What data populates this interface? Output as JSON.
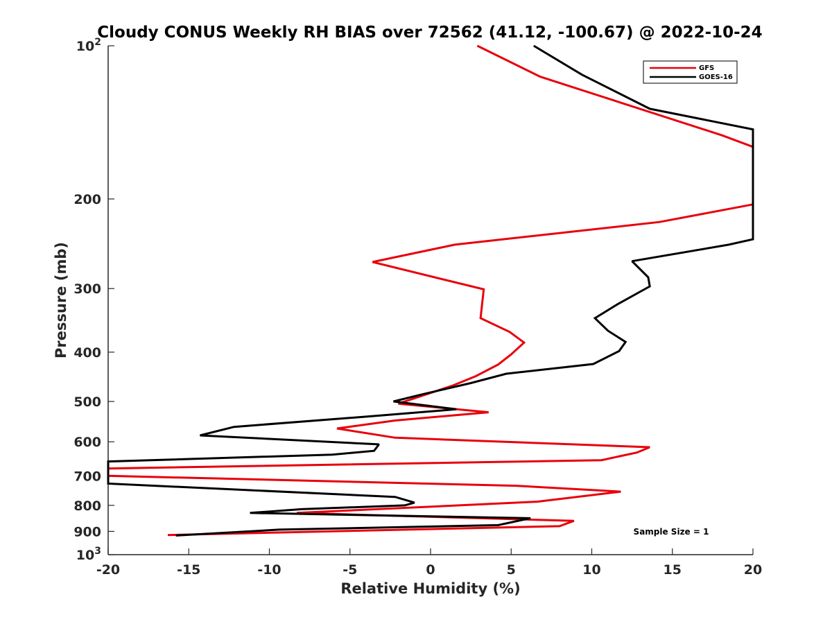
{
  "chart_data": {
    "type": "line",
    "title": "Cloudy CONUS Weekly RH BIAS over 72562 (41.12, -100.67) @ 2022-10-24",
    "xlabel": "Relative Humidity (%)",
    "ylabel": "Pressure (mb)",
    "xlim": [
      -20,
      20
    ],
    "ylim": [
      100,
      1000
    ],
    "y_scale": "log",
    "y_reversed": true,
    "x_ticks": [
      "-20",
      "-15",
      "-10",
      "-5",
      "0",
      "5",
      "10",
      "15",
      "20"
    ],
    "y_ticks": [
      {
        "value": 100,
        "base": "10",
        "exp": "2"
      },
      {
        "value": 200,
        "label": "200"
      },
      {
        "value": 300,
        "label": "300"
      },
      {
        "value": 400,
        "label": "400"
      },
      {
        "value": 500,
        "label": "500"
      },
      {
        "value": 600,
        "label": "600"
      },
      {
        "value": 700,
        "label": "700"
      },
      {
        "value": 800,
        "label": "800"
      },
      {
        "value": 900,
        "label": "900"
      },
      {
        "value": 1000,
        "base": "10",
        "exp": "3"
      }
    ],
    "grid": false,
    "legend_position": "top-right",
    "annotation": "Sample Size = 1",
    "series": [
      {
        "name": "GFS",
        "color": "#e8000b",
        "points": [
          [
            2.9,
            100
          ],
          [
            6.8,
            115
          ],
          [
            18.1,
            150
          ],
          [
            20.0,
            158
          ],
          [
            20.0,
            205
          ],
          [
            14.2,
            222
          ],
          [
            1.5,
            246
          ],
          [
            -3.6,
            266
          ],
          [
            3.3,
            301
          ],
          [
            3.1,
            343
          ],
          [
            4.9,
            365
          ],
          [
            5.8,
            383
          ],
          [
            5.0,
            404
          ],
          [
            4.2,
            423
          ],
          [
            2.8,
            446
          ],
          [
            1.4,
            465
          ],
          [
            -0.5,
            487
          ],
          [
            -2.0,
            505
          ],
          [
            3.6,
            525
          ],
          [
            -2.2,
            545
          ],
          [
            -5.8,
            565
          ],
          [
            -2.2,
            589
          ],
          [
            13.6,
            615
          ],
          [
            12.8,
            630
          ],
          [
            10.6,
            652
          ],
          [
            -20.0,
            677
          ],
          [
            -20.0,
            700
          ],
          [
            5.3,
            732
          ],
          [
            11.8,
            752
          ],
          [
            6.6,
            787
          ],
          [
            -8.3,
            828
          ],
          [
            8.9,
            858
          ],
          [
            8.0,
            879
          ],
          [
            -16.3,
            915
          ]
        ]
      },
      {
        "name": "GOES-16",
        "color": "#000000",
        "points": [
          [
            6.4,
            100
          ],
          [
            9.4,
            114
          ],
          [
            13.6,
            133
          ],
          [
            20.0,
            146
          ],
          [
            20.0,
            240
          ],
          [
            18.5,
            246
          ],
          [
            12.5,
            265
          ],
          [
            13.5,
            285
          ],
          [
            13.6,
            297
          ],
          [
            11.6,
            322
          ],
          [
            10.2,
            343
          ],
          [
            11.0,
            363
          ],
          [
            12.1,
            382
          ],
          [
            11.7,
            398
          ],
          [
            10.1,
            422
          ],
          [
            4.7,
            441
          ],
          [
            2.5,
            460
          ],
          [
            -0.5,
            484
          ],
          [
            -2.3,
            500
          ],
          [
            1.6,
            518
          ],
          [
            -3.5,
            534
          ],
          [
            -12.2,
            561
          ],
          [
            -14.3,
            583
          ],
          [
            -3.2,
            607
          ],
          [
            -3.5,
            625
          ],
          [
            -6.1,
            636
          ],
          [
            -20.0,
            656
          ],
          [
            -20.0,
            725
          ],
          [
            -2.2,
            770
          ],
          [
            -1.0,
            790
          ],
          [
            -1.6,
            800
          ],
          [
            -8.0,
            814
          ],
          [
            -11.2,
            828
          ],
          [
            6.2,
            848
          ],
          [
            4.2,
            875
          ],
          [
            -9.4,
            893
          ],
          [
            -15.8,
            917
          ]
        ]
      }
    ]
  }
}
